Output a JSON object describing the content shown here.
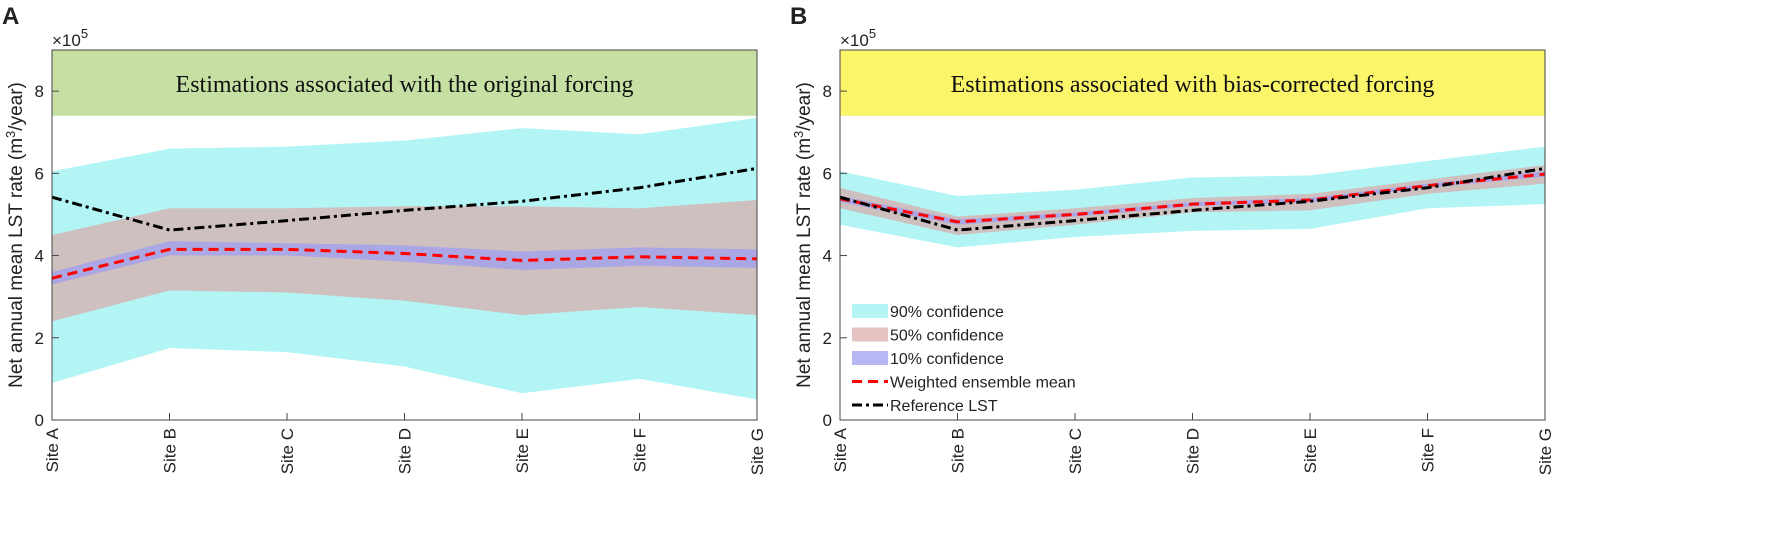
{
  "chart_data": [
    {
      "type": "line",
      "panel": "A",
      "annotation": "Estimations associated with the original forcing",
      "annotation_color": "#c6e0a4",
      "ylabel": [
        "Net annual mean LST rate (m",
        "3",
        "/year)"
      ],
      "ymultiplier": [
        "×10",
        "5"
      ],
      "categories": [
        "Site A",
        "Site B",
        "Site C",
        "Site D",
        "Site E",
        "Site F",
        "Site G"
      ],
      "ylim": [
        0,
        9
      ],
      "yticks": [
        0,
        2,
        4,
        6,
        8
      ],
      "legend": false,
      "series": [
        {
          "color": "#b3f5f5",
          "opacity": 1,
          "lower": [
            0.9,
            1.75,
            1.65,
            1.3,
            0.65,
            1.0,
            0.5
          ],
          "upper": [
            6.05,
            6.6,
            6.65,
            6.8,
            7.1,
            6.95,
            7.35
          ]
        },
        {
          "color": "#dcaaaa",
          "opacity": 0.7,
          "lower": [
            2.4,
            3.15,
            3.1,
            2.9,
            2.55,
            2.75,
            2.55
          ],
          "upper": [
            4.5,
            5.15,
            5.15,
            5.2,
            5.2,
            5.15,
            5.35
          ]
        },
        {
          "color": "#9f9ff0",
          "opacity": 0.75,
          "lower": [
            3.3,
            4.0,
            4.0,
            3.85,
            3.65,
            3.75,
            3.7
          ],
          "upper": [
            3.6,
            4.35,
            4.3,
            4.25,
            4.1,
            4.2,
            4.15
          ]
        },
        {
          "color": "#ff0000",
          "dash": "10 6",
          "values": [
            3.45,
            4.15,
            4.15,
            4.05,
            3.88,
            3.97,
            3.92
          ]
        },
        {
          "color": "#000000",
          "dash": "10 4 3 4",
          "values": [
            5.42,
            4.62,
            4.85,
            5.1,
            5.32,
            5.65,
            6.12
          ]
        }
      ]
    },
    {
      "type": "line",
      "panel": "B",
      "annotation": "Estimations associated with bias-corrected forcing",
      "annotation_color": "#fbf56a",
      "ylabel": [
        "Net annual mean LST rate (m",
        "3",
        "/year)"
      ],
      "ymultiplier": [
        "×10",
        "5"
      ],
      "categories": [
        "Site A",
        "Site B",
        "Site C",
        "Site D",
        "Site E",
        "Site F",
        "Site G"
      ],
      "ylim": [
        0,
        9
      ],
      "yticks": [
        0,
        2,
        4,
        6,
        8
      ],
      "legend": true,
      "series": [
        {
          "name": "90% confidence",
          "color": "#b3f5f5",
          "opacity": 1,
          "lower": [
            4.75,
            4.2,
            4.45,
            4.6,
            4.65,
            5.15,
            5.25
          ],
          "upper": [
            6.05,
            5.45,
            5.6,
            5.9,
            5.95,
            6.3,
            6.65
          ]
        },
        {
          "name": "50% confidence",
          "color": "#dcaaaa",
          "opacity": 0.7,
          "lower": [
            5.15,
            4.5,
            4.75,
            5.05,
            5.1,
            5.5,
            5.75
          ],
          "upper": [
            5.65,
            4.95,
            5.15,
            5.4,
            5.5,
            5.85,
            6.2
          ]
        },
        {
          "name": "10% confidence",
          "color": "#9f9ff0",
          "opacity": 0.75,
          "lower": [
            5.3,
            4.75,
            4.95,
            5.2,
            5.3,
            5.65,
            5.92
          ],
          "upper": [
            5.45,
            4.88,
            5.05,
            5.3,
            5.4,
            5.75,
            6.05
          ]
        },
        {
          "name": "Weighted ensemble mean",
          "color": "#ff0000",
          "dash": "10 6",
          "values": [
            5.38,
            4.82,
            5.0,
            5.25,
            5.35,
            5.7,
            5.98
          ]
        },
        {
          "name": "Reference LST",
          "color": "#000000",
          "dash": "10 4 3 4",
          "values": [
            5.42,
            4.62,
            4.85,
            5.1,
            5.32,
            5.65,
            6.12
          ]
        }
      ]
    }
  ]
}
